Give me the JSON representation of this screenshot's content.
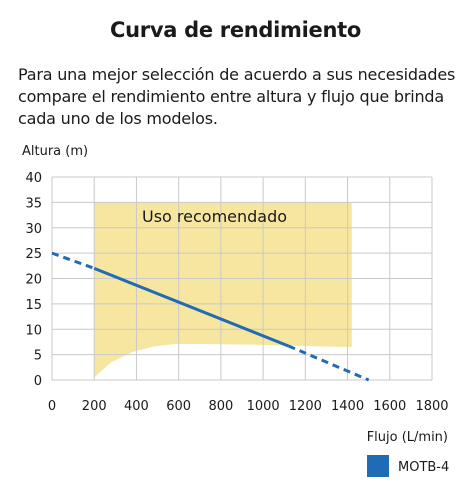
{
  "header": {
    "title": "Curva de rendimiento",
    "subtitle_lines": [
      "Para una mejor selección de acuerdo a sus necesidades",
      "compare el rendimiento entre altura y flujo que brinda",
      "cada uno de los modelos."
    ]
  },
  "chart_data": {
    "type": "line",
    "title": "Curva de rendimiento",
    "xlabel": "Flujo (L/min)",
    "ylabel": "Altura (m)",
    "xlim": [
      0,
      1800
    ],
    "ylim": [
      0,
      40
    ],
    "x_ticks": [
      0,
      200,
      400,
      600,
      800,
      1000,
      1200,
      1400,
      1600,
      1800
    ],
    "y_ticks": [
      0,
      5,
      10,
      15,
      20,
      25,
      30,
      35,
      40
    ],
    "grid": true,
    "legend_position": "bottom-right",
    "series": [
      {
        "name": "MOTB-4",
        "color": "#1f6bb5",
        "solid": {
          "x": [
            200,
            1120
          ],
          "y": [
            22,
            6.7
          ]
        },
        "dashed_segments": [
          {
            "x": [
              0,
              200
            ],
            "y": [
              25,
              22
            ]
          },
          {
            "x": [
              1120,
              1500
            ],
            "y": [
              6.7,
              0
            ]
          }
        ]
      }
    ],
    "recommended_zone": {
      "label": "Uso recomendado",
      "color": "#f7e6a0",
      "upper": {
        "x": [
          200,
          1420
        ],
        "y": [
          35,
          35
        ]
      },
      "lower": {
        "x": [
          200,
          280,
          380,
          480,
          580,
          700,
          900,
          1100,
          1300,
          1420
        ],
        "y": [
          0.5,
          3.5,
          5.5,
          6.6,
          7.1,
          7.1,
          7.0,
          6.8,
          6.6,
          6.5
        ]
      }
    }
  }
}
